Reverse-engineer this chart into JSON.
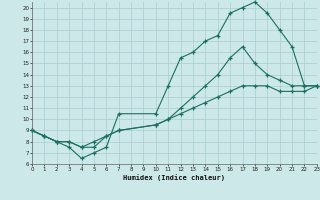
{
  "xlabel": "Humidex (Indice chaleur)",
  "bg_color": "#cce8e8",
  "grid_color": "#aacece",
  "line_color": "#1a7060",
  "curve1_x": [
    0,
    1,
    2,
    3,
    4,
    5,
    6,
    7,
    10,
    11,
    12,
    13,
    14,
    15,
    16,
    17,
    18,
    19,
    20,
    21,
    22,
    23
  ],
  "curve1_y": [
    9,
    8.5,
    8,
    7.5,
    6.5,
    7.0,
    7.5,
    10.5,
    10.5,
    13.0,
    15.5,
    16.0,
    17.0,
    17.5,
    19.5,
    20.0,
    20.5,
    19.5,
    18.0,
    16.5,
    13.0,
    13.0
  ],
  "curve2_x": [
    0,
    1,
    2,
    3,
    4,
    5,
    6,
    7,
    10,
    11,
    12,
    13,
    14,
    15,
    16,
    17,
    18,
    19,
    20,
    21,
    22,
    23
  ],
  "curve2_y": [
    9,
    8.5,
    8,
    8,
    7.5,
    7.5,
    8.5,
    9.0,
    9.5,
    10.0,
    11.0,
    12.0,
    13.0,
    14.0,
    15.5,
    16.5,
    15.0,
    14.0,
    13.5,
    13.0,
    13.0,
    13.0
  ],
  "curve3_x": [
    0,
    1,
    2,
    3,
    4,
    5,
    6,
    7,
    10,
    11,
    12,
    13,
    14,
    15,
    16,
    17,
    18,
    19,
    20,
    21,
    22,
    23
  ],
  "curve3_y": [
    9,
    8.5,
    8,
    8,
    7.5,
    8.0,
    8.5,
    9.0,
    9.5,
    10.0,
    10.5,
    11.0,
    11.5,
    12.0,
    12.5,
    13.0,
    13.0,
    13.0,
    12.5,
    12.5,
    12.5,
    13.0
  ],
  "xlim": [
    0,
    23
  ],
  "ylim": [
    6,
    20.5
  ],
  "yticks": [
    6,
    7,
    8,
    9,
    10,
    11,
    12,
    13,
    14,
    15,
    16,
    17,
    18,
    19,
    20
  ],
  "xticks": [
    0,
    1,
    2,
    3,
    4,
    5,
    6,
    7,
    8,
    9,
    10,
    11,
    12,
    13,
    14,
    15,
    16,
    17,
    18,
    19,
    20,
    21,
    22,
    23
  ]
}
